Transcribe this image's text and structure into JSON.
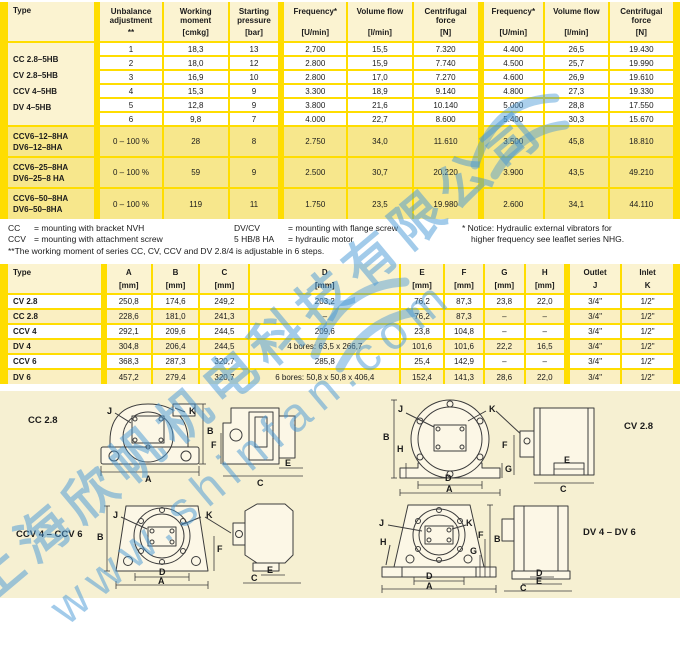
{
  "colors": {
    "accent_yellow": "#ffdd00",
    "header_cream": "#fbf3d1",
    "highlight_row": "#f7e78c",
    "stripe_row": "#faefc2",
    "page_bg": "#f6f0d2",
    "watermark_blue": "#4798d6"
  },
  "watermark": {
    "company": "上海欣帆机电科技有限公司",
    "url": "www.shinfan.com"
  },
  "letters": {
    "a": "A",
    "b": "B",
    "c": "C",
    "d": "D",
    "e": "E",
    "f": "F",
    "g": "G",
    "h": "H",
    "j": "J",
    "k": "K"
  },
  "spec_table": {
    "col_headers": [
      {
        "title": "Type",
        "sub": ""
      },
      {
        "title": "Unbalance adjustment",
        "sub": "**"
      },
      {
        "title": "Working moment",
        "sub": "[cmkg]"
      },
      {
        "title": "Starting pressure",
        "sub": "[bar]"
      },
      {
        "title": "Frequency*",
        "sub": "[U/min]"
      },
      {
        "title": "Volume flow",
        "sub": "[l/min]"
      },
      {
        "title": "Centrifugal force",
        "sub": "[N]"
      },
      {
        "title": "Frequency*",
        "sub": "[U/min]"
      },
      {
        "title": "Volume flow",
        "sub": "[l/min]"
      },
      {
        "title": "Centrifugal force",
        "sub": "[N]"
      }
    ],
    "group_types": [
      "CC 2.8–5HB",
      "CV 2.8–5HB",
      "CCV 4–5HB",
      "DV 4–5HB"
    ],
    "step_rows": [
      [
        "1",
        "18,3",
        "13",
        "2,700",
        "15,5",
        "7.320",
        "4.400",
        "26,5",
        "19.430"
      ],
      [
        "2",
        "18,0",
        "12",
        "2.800",
        "15,9",
        "7.740",
        "4.500",
        "25,7",
        "19.990"
      ],
      [
        "3",
        "16,9",
        "10",
        "2.800",
        "17,0",
        "7.270",
        "4.600",
        "26,9",
        "19.610"
      ],
      [
        "4",
        "15,3",
        "9",
        "3.300",
        "18,9",
        "9.140",
        "4.800",
        "27,3",
        "19.330"
      ],
      [
        "5",
        "12,8",
        "9",
        "3.800",
        "21,6",
        "10.140",
        "5.000",
        "28,8",
        "17.550"
      ],
      [
        "6",
        "9,8",
        "7",
        "4.000",
        "22,7",
        "8.600",
        "5.400",
        "30,3",
        "15.670"
      ]
    ],
    "range_rows": [
      {
        "types": [
          "CCV6–12–8HA",
          "DV6–12–8HA"
        ],
        "cells": [
          "0 – 100 %",
          "28",
          "8",
          "2.750",
          "34,0",
          "11.610",
          "3.500",
          "45,8",
          "18.810"
        ]
      },
      {
        "types": [
          "CCV6–25–8HA",
          "DV6–25–8 HA"
        ],
        "cells": [
          "0 – 100 %",
          "59",
          "9",
          "2.500",
          "30,7",
          "20.220",
          "3.900",
          "43,5",
          "49.210"
        ]
      },
      {
        "types": [
          "CCV6–50–8HA",
          "DV6–50–8HA"
        ],
        "cells": [
          "0 – 100 %",
          "119",
          "11",
          "1.750",
          "23,5",
          "19.980",
          "2.600",
          "34,1",
          "44.110"
        ]
      }
    ]
  },
  "footnotes": {
    "defs1": [
      {
        "k": "CC",
        "v": "= mounting with bracket NVH"
      },
      {
        "k": "CCV",
        "v": "= mounting with attachment screw"
      }
    ],
    "defs2": [
      {
        "k": "DV/CV",
        "v": "= mounting with flange screw"
      },
      {
        "k": "5 HB/8 HA",
        "v": "= hydraulic motor"
      }
    ],
    "notice1": "* Notice: Hydraulic external vibrators for",
    "notice2": "higher frequency see leaflet series NHG.",
    "adjust_note": "**The working moment of series CC, CV, CCV and DV 2.8/4 is adjustable in 6 steps."
  },
  "dim_table": {
    "col_headers": [
      {
        "title": "Type",
        "sub": ""
      },
      {
        "title": "A",
        "sub": "[mm]"
      },
      {
        "title": "B",
        "sub": "[mm]"
      },
      {
        "title": "C",
        "sub": "[mm]"
      },
      {
        "title": "D",
        "sub": "[mm]"
      },
      {
        "title": "E",
        "sub": "[mm]"
      },
      {
        "title": "F",
        "sub": "[mm]"
      },
      {
        "title": "G",
        "sub": "[mm]"
      },
      {
        "title": "H",
        "sub": "[mm]"
      },
      {
        "title": "Outlet",
        "sub": "J"
      },
      {
        "title": "Inlet",
        "sub": "K"
      }
    ],
    "rows": [
      {
        "type": "CV 2.8",
        "hl": false,
        "cells": [
          "250,8",
          "174,6",
          "249,2",
          "203,2",
          "76,2",
          "87,3",
          "23,8",
          "22,0",
          "3/4\"",
          "1/2\""
        ]
      },
      {
        "type": "CC 2.8",
        "hl": true,
        "cells": [
          "228,6",
          "181,0",
          "241,3",
          "–",
          "76,2",
          "87,3",
          "–",
          "–",
          "3/4\"",
          "1/2\""
        ]
      },
      {
        "type": "CCV 4",
        "hl": false,
        "cells": [
          "292,1",
          "209,6",
          "244,5",
          "209,6",
          "23,8",
          "104,8",
          "–",
          "–",
          "3/4\"",
          "1/2\""
        ]
      },
      {
        "type": "DV 4",
        "hl": true,
        "cells": [
          "304,8",
          "206,4",
          "244,5",
          "4 bores: 63,5 x 266,7",
          "101,6",
          "101,6",
          "22,2",
          "16,5",
          "3/4\"",
          "1/2\""
        ]
      },
      {
        "type": "CCV 6",
        "hl": false,
        "cells": [
          "368,3",
          "287,3",
          "320,7",
          "285,8",
          "25,4",
          "142,9",
          "–",
          "–",
          "3/4\"",
          "1/2\""
        ]
      },
      {
        "type": "DV 6",
        "hl": true,
        "cells": [
          "457,2",
          "279,4",
          "320,7",
          "6 bores: 50,8 x 50,8 x 406,4",
          "152,4",
          "141,3",
          "28,6",
          "22,0",
          "3/4\"",
          "1/2\""
        ]
      }
    ]
  },
  "drawings": {
    "cc": "CC 2.8",
    "cv": "CV 2.8",
    "ccv": "CCV 4 – CCV 6",
    "dv": "DV 4 – DV 6"
  }
}
